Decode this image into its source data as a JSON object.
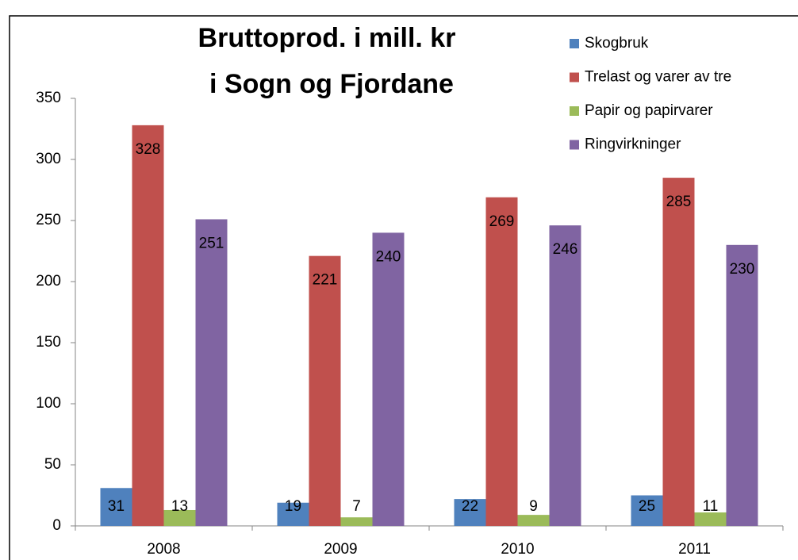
{
  "chart_data": {
    "type": "bar",
    "title": [
      "Bruttoprod. i mill. kr",
      "i Sogn og Fjordane"
    ],
    "categories": [
      "2008",
      "2009",
      "2010",
      "2011"
    ],
    "series": [
      {
        "name": "Skogbruk",
        "color": "#4f81bd",
        "values": [
          31,
          19,
          22,
          25
        ]
      },
      {
        "name": "Trelast og varer av tre",
        "color": "#c0504d",
        "values": [
          328,
          221,
          269,
          285
        ]
      },
      {
        "name": "Papir og papirvarer",
        "color": "#9bbb59",
        "values": [
          13,
          7,
          9,
          11
        ]
      },
      {
        "name": "Ringvirkninger",
        "color": "#8064a2",
        "values": [
          251,
          240,
          246,
          230
        ]
      }
    ],
    "ylim": [
      0,
      350
    ],
    "yticks": [
      0,
      50,
      100,
      150,
      200,
      250,
      300,
      350
    ],
    "grid": false,
    "legend": "top-right"
  }
}
